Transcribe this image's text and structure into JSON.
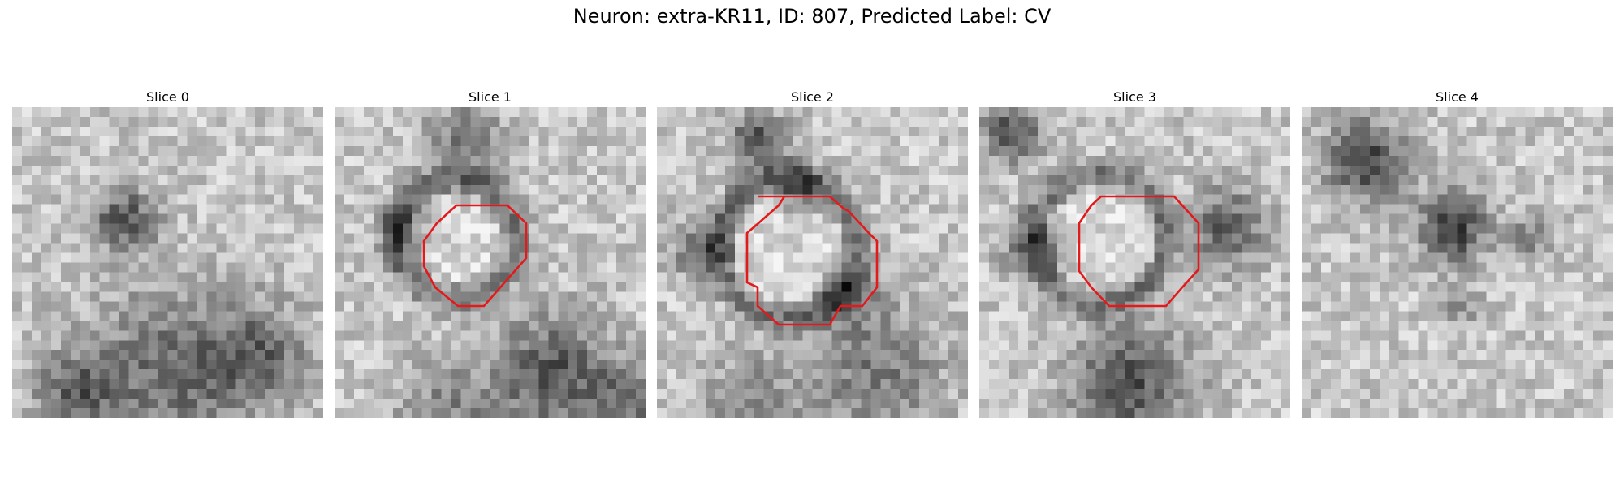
{
  "figure": {
    "title": "Neuron: extra-KR11, ID: 807, Predicted Label: CV",
    "roi_color": "#e31a1c",
    "colormap": "gray"
  },
  "panels": [
    {
      "title": "Slice 0",
      "has_roi": false
    },
    {
      "title": "Slice 1",
      "has_roi": true
    },
    {
      "title": "Slice 2",
      "has_roi": true
    },
    {
      "title": "Slice 3",
      "has_roi": true
    },
    {
      "title": "Slice 4",
      "has_roi": false
    }
  ]
}
